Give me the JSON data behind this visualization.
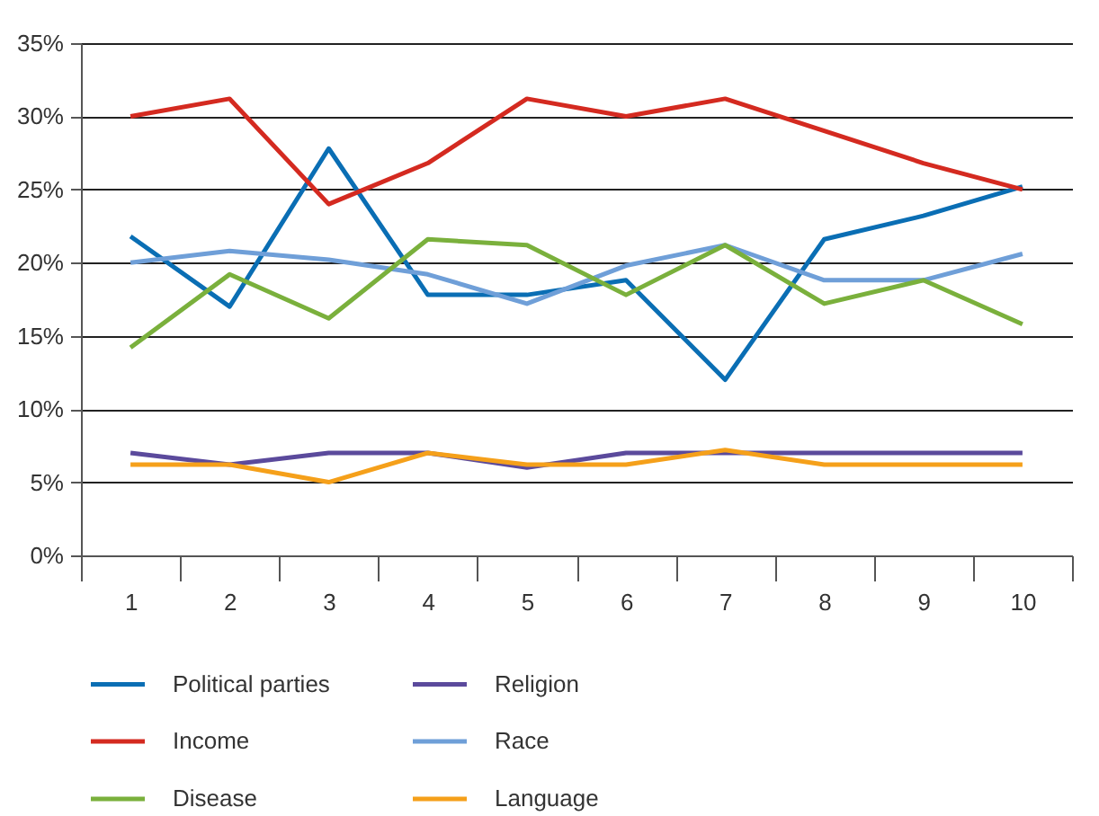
{
  "chart_data": {
    "type": "line",
    "categories": [
      "1",
      "2",
      "3",
      "4",
      "5",
      "6",
      "7",
      "8",
      "9",
      "10"
    ],
    "series": [
      {
        "name": "Political parties",
        "color": "#0a6eb4",
        "values": [
          21.8,
          17,
          27.8,
          17.8,
          17.8,
          18.8,
          12,
          21.6,
          23.2,
          25.2
        ]
      },
      {
        "name": "Religion",
        "color": "#5b4a9c",
        "values": [
          7,
          6.2,
          7,
          7,
          6,
          7,
          7,
          7,
          7,
          7
        ]
      },
      {
        "name": "Income",
        "color": "#d42a20",
        "values": [
          30,
          31.2,
          24,
          26.8,
          31.2,
          30,
          31.2,
          29,
          26.8,
          25
        ]
      },
      {
        "name": "Race",
        "color": "#6f9fd8",
        "values": [
          20,
          20.8,
          20.2,
          19.2,
          17.2,
          19.8,
          21.2,
          18.8,
          18.8,
          20.6
        ]
      },
      {
        "name": "Disease",
        "color": "#7ab03c",
        "values": [
          14.2,
          19.2,
          16.2,
          21.6,
          21.2,
          17.8,
          21.2,
          17.2,
          18.8,
          15.8
        ]
      },
      {
        "name": "Language",
        "color": "#f5a01a",
        "values": [
          6.2,
          6.2,
          5,
          7,
          6.2,
          6.2,
          7.2,
          6.2,
          6.2,
          6.2
        ]
      }
    ],
    "ylim": [
      0,
      35
    ],
    "yticks": [
      {
        "value": 0,
        "label": "0%"
      },
      {
        "value": 5,
        "label": "5%"
      },
      {
        "value": 10,
        "label": "10%"
      },
      {
        "value": 15,
        "label": "15%"
      },
      {
        "value": 20,
        "label": "20%"
      },
      {
        "value": 25,
        "label": "25%"
      },
      {
        "value": 30,
        "label": "30%"
      },
      {
        "value": 35,
        "label": "35%"
      }
    ],
    "grid": "y",
    "legend": "bottom",
    "marker": "none",
    "line_style": "solid"
  }
}
